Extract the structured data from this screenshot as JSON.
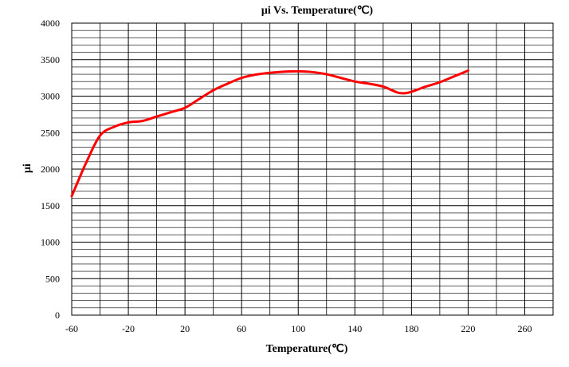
{
  "chart_data": {
    "type": "line",
    "title": "μi Vs. Temperature(℃)",
    "xlabel": "Temperature(℃)",
    "ylabel": "μi",
    "xlim": [
      -60,
      280
    ],
    "ylim": [
      0,
      4000
    ],
    "x_ticks": [
      -60,
      -20,
      20,
      60,
      100,
      140,
      180,
      220,
      260
    ],
    "y_ticks": [
      0,
      500,
      1000,
      1500,
      2000,
      2500,
      3000,
      3500,
      4000
    ],
    "x_minor_step": 20,
    "y_minor_step": 100,
    "grid": true,
    "series": [
      {
        "color": "#ff0000",
        "x": [
          -60,
          -50,
          -40,
          -30,
          -20,
          -10,
          0,
          10,
          20,
          30,
          40,
          50,
          60,
          70,
          80,
          90,
          100,
          110,
          120,
          130,
          140,
          150,
          160,
          170,
          175,
          180,
          190,
          200,
          210,
          220
        ],
        "y": [
          1630,
          2080,
          2460,
          2580,
          2640,
          2660,
          2720,
          2780,
          2840,
          2960,
          3080,
          3170,
          3250,
          3295,
          3320,
          3335,
          3340,
          3330,
          3300,
          3250,
          3200,
          3170,
          3130,
          3050,
          3040,
          3060,
          3130,
          3190,
          3270,
          3350
        ]
      }
    ]
  }
}
